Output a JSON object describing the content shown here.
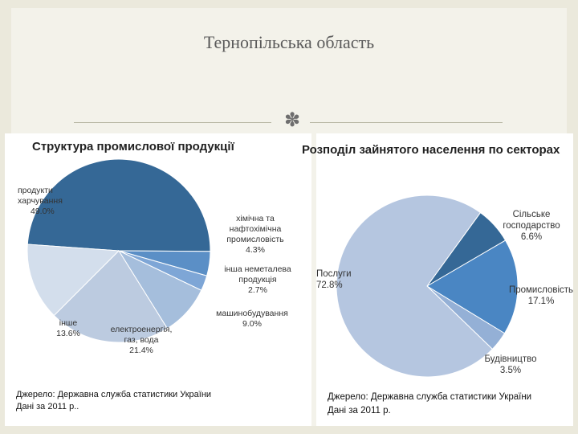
{
  "slide": {
    "title": "Тернопільська область"
  },
  "chart_data": [
    {
      "type": "pie",
      "title": "Структура промислової продукції",
      "slices": [
        {
          "label": "продукти харчування",
          "value": 49.0,
          "value_label": "49.0%",
          "color": "#356896"
        },
        {
          "label": "хімічна та нафтохімічна промисловість",
          "value": 4.3,
          "value_label": "4.3%",
          "color": "#5b8fc6"
        },
        {
          "label": "інша неметалева продукція",
          "value": 2.7,
          "value_label": "2.7%",
          "color": "#7ea6d6"
        },
        {
          "label": "машинобудування",
          "value": 9.0,
          "value_label": "9.0%",
          "color": "#a5bedc"
        },
        {
          "label": "електроенергія, газ, вода",
          "value": 21.4,
          "value_label": "21.4%",
          "color": "#bccbe0"
        },
        {
          "label": "інше",
          "value": 13.6,
          "value_label": "13.6%",
          "color": "#d3deec"
        }
      ],
      "source_line1": "Джерело: Державна служба статистики України",
      "source_line2": "Дані за 2011 р.."
    },
    {
      "type": "pie",
      "title": "Розподіл зайнятого населення по секторах",
      "slices": [
        {
          "label": "Сільське господарство",
          "value": 6.6,
          "value_label": "6.6%",
          "color": "#356896"
        },
        {
          "label": "Промисловість",
          "value": 17.1,
          "value_label": "17.1%",
          "color": "#4a86c3"
        },
        {
          "label": "Будівництво",
          "value": 3.5,
          "value_label": "3.5%",
          "color": "#94b0d6"
        },
        {
          "label": "Послуги",
          "value": 72.8,
          "value_label": "72.8%",
          "color": "#b5c6e0"
        }
      ],
      "source_line1": "Джерело: Державна служба статистики України",
      "source_line2": "Дані за 2011 р."
    }
  ]
}
